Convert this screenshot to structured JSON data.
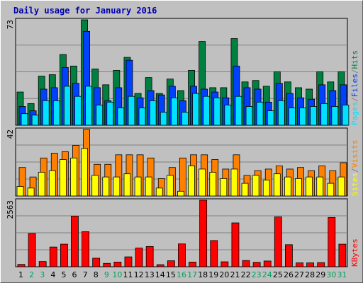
{
  "colors": {
    "background": "#c0c0c0",
    "plot_bg": "#c0c0c0",
    "grid": "#808080",
    "title": "#0000b0",
    "hits": "#008040",
    "files": "#0040ff",
    "pages": "#00e0ff",
    "visits": "#ff8000",
    "sites": "#ffff00",
    "kbytes": "#ff0000",
    "weekend_day": "#00a060",
    "weekday_day": "#000000"
  },
  "chart_data": {
    "title": "Daily usage for January 2016",
    "days": [
      "1",
      "2",
      "3",
      "4",
      "5",
      "6",
      "7",
      "8",
      "9",
      "10",
      "11",
      "12",
      "13",
      "14",
      "15",
      "16",
      "17",
      "18",
      "19",
      "20",
      "21",
      "22",
      "23",
      "24",
      "25",
      "26",
      "27",
      "28",
      "29",
      "30",
      "31"
    ],
    "weekend_days": [
      "2",
      "3",
      "9",
      "10",
      "16",
      "17",
      "23",
      "24",
      "30",
      "31"
    ],
    "panels": [
      {
        "type": "bar",
        "name": "hits-files-pages",
        "max_label": "73",
        "ylim": [
          0,
          73
        ],
        "series": [
          {
            "name": "Hits",
            "values": [
              23,
              15,
              34,
              35,
              49,
              41,
              73,
              39,
              28,
              38,
              47,
              22,
              33,
              22,
              32,
              24,
              38,
              58,
              26,
              26,
              60,
              30,
              31,
              27,
              37,
              30,
              26,
              25,
              37,
              30,
              37
            ]
          },
          {
            "name": "Files",
            "values": [
              13,
              10,
              25,
              26,
              40,
              29,
              65,
              26,
              17,
              26,
              45,
              19,
              24,
              21,
              27,
              17,
              27,
              25,
              23,
              19,
              41,
              26,
              25,
              16,
              29,
              22,
              19,
              18,
              28,
              24,
              28
            ]
          },
          {
            "name": "Pages",
            "values": [
              8,
              7,
              17,
              17,
              27,
              20,
              27,
              14,
              16,
              12,
              20,
              12,
              17,
              9,
              19,
              9,
              22,
              20,
              19,
              14,
              20,
              13,
              16,
              10,
              17,
              12,
              12,
              13,
              15,
              13,
              14
            ]
          }
        ],
        "legend": [
          "Pages",
          "/",
          "Files",
          "/",
          "Hits"
        ]
      },
      {
        "type": "bar",
        "name": "visits-sites",
        "max_label": "42",
        "ylim": [
          0,
          42
        ],
        "series": [
          {
            "name": "Visits",
            "values": [
              18,
              12,
              24,
              27,
              28,
              32,
              42,
              20,
              20,
              26,
              26,
              26,
              24,
              11,
              18,
              24,
              26,
              26,
              23,
              17,
              26,
              13,
              16,
              17,
              19,
              17,
              18,
              16,
              19,
              16,
              21
            ]
          },
          {
            "name": "Sites",
            "values": [
              6,
              5,
              15,
              16,
              23,
              24,
              30,
              13,
              12,
              12,
              14,
              12,
              12,
              5,
              13,
              3,
              19,
              17,
              15,
              11,
              17,
              8,
              13,
              10,
              14,
              12,
              11,
              12,
              12,
              8,
              12
            ]
          }
        ],
        "legend": [
          "Sites",
          "/",
          "Visits"
        ]
      },
      {
        "type": "bar",
        "name": "kbytes",
        "max_label": "2563",
        "ylim": [
          0,
          2563
        ],
        "series": [
          {
            "name": "KBytes",
            "values": [
              90,
              1280,
              200,
              760,
              870,
              1950,
              1350,
              330,
              130,
              180,
              380,
              720,
              780,
              80,
              230,
              880,
              180,
              2563,
              1010,
              190,
              1690,
              240,
              170,
              220,
              1920,
              850,
              150,
              150,
              160,
              1900,
              870
            ]
          }
        ],
        "legend": [
          "KBytes"
        ]
      }
    ]
  }
}
